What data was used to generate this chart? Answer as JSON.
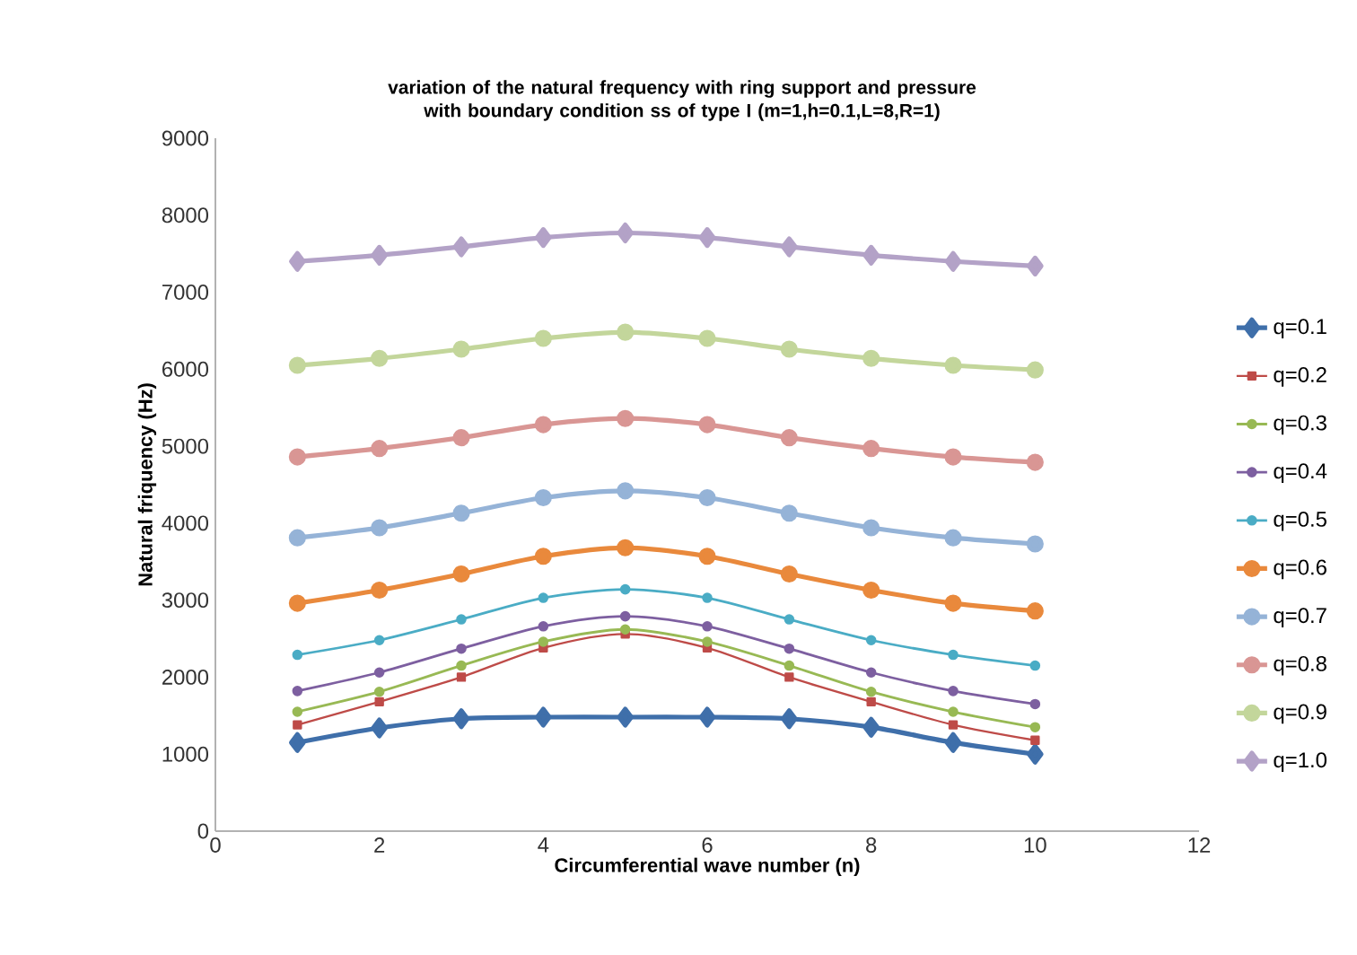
{
  "chart_data": {
    "type": "line",
    "title": "variation of the natural frequency  with ring support and pressure with boundary condition ss  of type I (m=1,h=0.1,L=8,R=1)",
    "xlabel": "Circumferential wave number (n)",
    "ylabel": "Natural friquency (Hz)",
    "x": [
      1,
      2,
      3,
      4,
      5,
      6,
      7,
      8,
      9,
      10
    ],
    "xlim": [
      0,
      12
    ],
    "xticks": [
      0,
      2,
      4,
      6,
      8,
      10,
      12
    ],
    "ylim": [
      0,
      9000
    ],
    "yticks": [
      0,
      1000,
      2000,
      3000,
      4000,
      5000,
      6000,
      7000,
      8000,
      9000
    ],
    "grid": false,
    "legend": "right",
    "line_style": "solid",
    "series": [
      {
        "name": "q=0.1",
        "color": "#3f6faa",
        "marker": "diamond",
        "values": [
          1150,
          1340,
          1460,
          1480,
          1480,
          1480,
          1460,
          1350,
          1150,
          1000
        ]
      },
      {
        "name": "q=0.2",
        "color": "#be4b48",
        "marker": "square",
        "values": [
          1380,
          1680,
          2000,
          2380,
          2560,
          2380,
          2000,
          1680,
          1380,
          1180
        ]
      },
      {
        "name": "q=0.3",
        "color": "#98b954",
        "marker": "circle",
        "values": [
          1550,
          1810,
          2150,
          2460,
          2620,
          2460,
          2150,
          1810,
          1550,
          1350
        ]
      },
      {
        "name": "q=0.4",
        "color": "#7d5fa0",
        "marker": "circle",
        "values": [
          1820,
          2060,
          2370,
          2660,
          2790,
          2660,
          2370,
          2060,
          1820,
          1650
        ]
      },
      {
        "name": "q=0.5",
        "color": "#4aacc5",
        "marker": "circle",
        "values": [
          2290,
          2480,
          2750,
          3030,
          3140,
          3030,
          2750,
          2480,
          2290,
          2150
        ]
      },
      {
        "name": "q=0.6",
        "color": "#e9893c",
        "marker": "circle",
        "values": [
          2960,
          3130,
          3340,
          3570,
          3680,
          3570,
          3340,
          3130,
          2960,
          2860
        ]
      },
      {
        "name": "q=0.7",
        "color": "#95b3d7",
        "marker": "circle",
        "values": [
          3810,
          3940,
          4130,
          4330,
          4420,
          4330,
          4130,
          3940,
          3810,
          3730
        ]
      },
      {
        "name": "q=0.8",
        "color": "#d99694",
        "marker": "circle",
        "values": [
          4860,
          4970,
          5110,
          5280,
          5360,
          5280,
          5110,
          4970,
          4860,
          4790
        ]
      },
      {
        "name": "q=0.9",
        "color": "#c3d69b",
        "marker": "circle",
        "values": [
          6050,
          6140,
          6260,
          6400,
          6480,
          6400,
          6260,
          6140,
          6050,
          5990
        ]
      },
      {
        "name": "q=1.0",
        "color": "#b3a2c7",
        "marker": "diamond",
        "values": [
          7400,
          7480,
          7590,
          7710,
          7770,
          7710,
          7590,
          7480,
          7400,
          7340
        ]
      }
    ]
  }
}
